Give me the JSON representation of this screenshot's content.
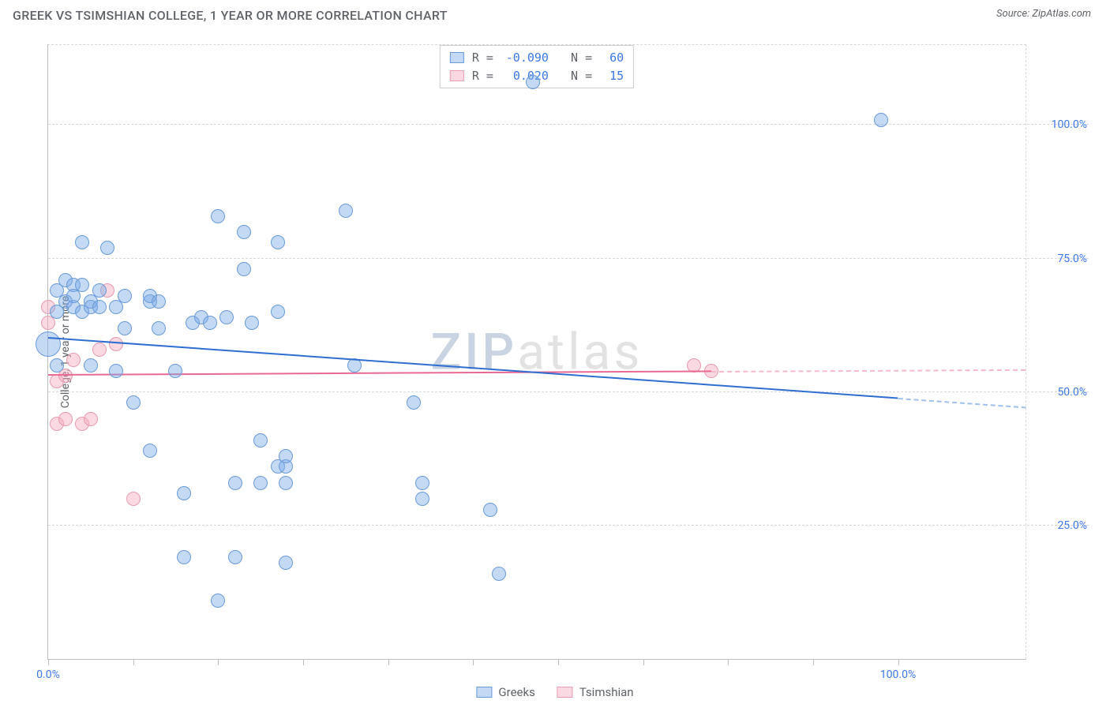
{
  "meta": {
    "title": "GREEK VS TSIMSHIAN COLLEGE, 1 YEAR OR MORE CORRELATION CHART",
    "source": "Source: ZipAtlas.com",
    "watermark_a": "ZIP",
    "watermark_b": "atlas"
  },
  "chart": {
    "type": "scatter",
    "ylabel": "College, 1 year or more",
    "xlim": [
      0,
      115
    ],
    "ylim": [
      0,
      115
    ],
    "xticks": [
      0,
      10,
      20,
      30,
      40,
      50,
      60,
      70,
      80,
      90,
      100
    ],
    "xtick_labels": {
      "0": "0.0%",
      "100": "100.0%"
    },
    "yticks": [
      25,
      50,
      75,
      100
    ],
    "ytick_labels": {
      "25": "25.0%",
      "50": "50.0%",
      "75": "75.0%",
      "100": "100.0%"
    },
    "tick_label_color": "#3b78e7",
    "grid_color": "#d8d8d8",
    "axis_color": "#bdbdbd",
    "background": "#ffffff"
  },
  "series": {
    "greeks": {
      "label": "Greeks",
      "fill": "rgba(122,170,230,0.45)",
      "stroke": "#6a9ad8",
      "line_color": "#2f6ed0",
      "dash_color": "#9ec0ea",
      "marker_r": 9,
      "R": "-0.090",
      "N": "60",
      "trend": {
        "x1": 0,
        "y1": 60,
        "x2": 115,
        "y2": 47,
        "solid_until_x": 100
      },
      "points": [
        {
          "x": 0,
          "y": 59,
          "r": 16
        },
        {
          "x": 1,
          "y": 65
        },
        {
          "x": 1,
          "y": 55
        },
        {
          "x": 1,
          "y": 69
        },
        {
          "x": 2,
          "y": 71
        },
        {
          "x": 2,
          "y": 67
        },
        {
          "x": 3,
          "y": 70
        },
        {
          "x": 3,
          "y": 66
        },
        {
          "x": 3,
          "y": 68
        },
        {
          "x": 4,
          "y": 70
        },
        {
          "x": 4,
          "y": 65
        },
        {
          "x": 4,
          "y": 78
        },
        {
          "x": 5,
          "y": 66
        },
        {
          "x": 5,
          "y": 55
        },
        {
          "x": 5,
          "y": 67
        },
        {
          "x": 6,
          "y": 69
        },
        {
          "x": 6,
          "y": 66
        },
        {
          "x": 7,
          "y": 77
        },
        {
          "x": 8,
          "y": 54
        },
        {
          "x": 8,
          "y": 66
        },
        {
          "x": 9,
          "y": 62
        },
        {
          "x": 9,
          "y": 68
        },
        {
          "x": 10,
          "y": 48
        },
        {
          "x": 12,
          "y": 39
        },
        {
          "x": 12,
          "y": 67
        },
        {
          "x": 12,
          "y": 68
        },
        {
          "x": 13,
          "y": 62
        },
        {
          "x": 13,
          "y": 67
        },
        {
          "x": 15,
          "y": 54
        },
        {
          "x": 16,
          "y": 31
        },
        {
          "x": 16,
          "y": 19
        },
        {
          "x": 17,
          "y": 63
        },
        {
          "x": 18,
          "y": 64
        },
        {
          "x": 19,
          "y": 63
        },
        {
          "x": 20,
          "y": 83
        },
        {
          "x": 20,
          "y": 11
        },
        {
          "x": 21,
          "y": 64
        },
        {
          "x": 22,
          "y": 33
        },
        {
          "x": 22,
          "y": 19
        },
        {
          "x": 23,
          "y": 73
        },
        {
          "x": 23,
          "y": 80
        },
        {
          "x": 24,
          "y": 63
        },
        {
          "x": 25,
          "y": 33
        },
        {
          "x": 25,
          "y": 41
        },
        {
          "x": 27,
          "y": 36
        },
        {
          "x": 27,
          "y": 65
        },
        {
          "x": 27,
          "y": 78
        },
        {
          "x": 28,
          "y": 36
        },
        {
          "x": 28,
          "y": 38
        },
        {
          "x": 28,
          "y": 33
        },
        {
          "x": 28,
          "y": 18
        },
        {
          "x": 35,
          "y": 84
        },
        {
          "x": 36,
          "y": 55
        },
        {
          "x": 43,
          "y": 48
        },
        {
          "x": 44,
          "y": 33
        },
        {
          "x": 44,
          "y": 30
        },
        {
          "x": 52,
          "y": 28
        },
        {
          "x": 53,
          "y": 16
        },
        {
          "x": 57,
          "y": 108
        },
        {
          "x": 98,
          "y": 101
        }
      ]
    },
    "tsimshian": {
      "label": "Tsimshian",
      "fill": "rgba(245,170,190,0.45)",
      "stroke": "#e79bb0",
      "line_color": "#e86a93",
      "dash_color": "#f6b8cb",
      "marker_r": 9,
      "R": "0.020",
      "N": "15",
      "trend": {
        "x1": 0,
        "y1": 53,
        "x2": 115,
        "y2": 54,
        "solid_until_x": 78
      },
      "points": [
        {
          "x": 0,
          "y": 66
        },
        {
          "x": 0,
          "y": 63
        },
        {
          "x": 1,
          "y": 52
        },
        {
          "x": 1,
          "y": 44
        },
        {
          "x": 2,
          "y": 53
        },
        {
          "x": 2,
          "y": 45
        },
        {
          "x": 3,
          "y": 56
        },
        {
          "x": 4,
          "y": 44
        },
        {
          "x": 5,
          "y": 45
        },
        {
          "x": 6,
          "y": 58
        },
        {
          "x": 7,
          "y": 69
        },
        {
          "x": 8,
          "y": 59
        },
        {
          "x": 10,
          "y": 30
        },
        {
          "x": 76,
          "y": 55
        },
        {
          "x": 78,
          "y": 54
        }
      ]
    }
  },
  "legend_top": {
    "rows": [
      {
        "seriesKey": "greeks"
      },
      {
        "seriesKey": "tsimshian"
      }
    ],
    "lblR": "R =",
    "lblN": "N ="
  },
  "legend_bottom": [
    {
      "seriesKey": "greeks"
    },
    {
      "seriesKey": "tsimshian"
    }
  ]
}
